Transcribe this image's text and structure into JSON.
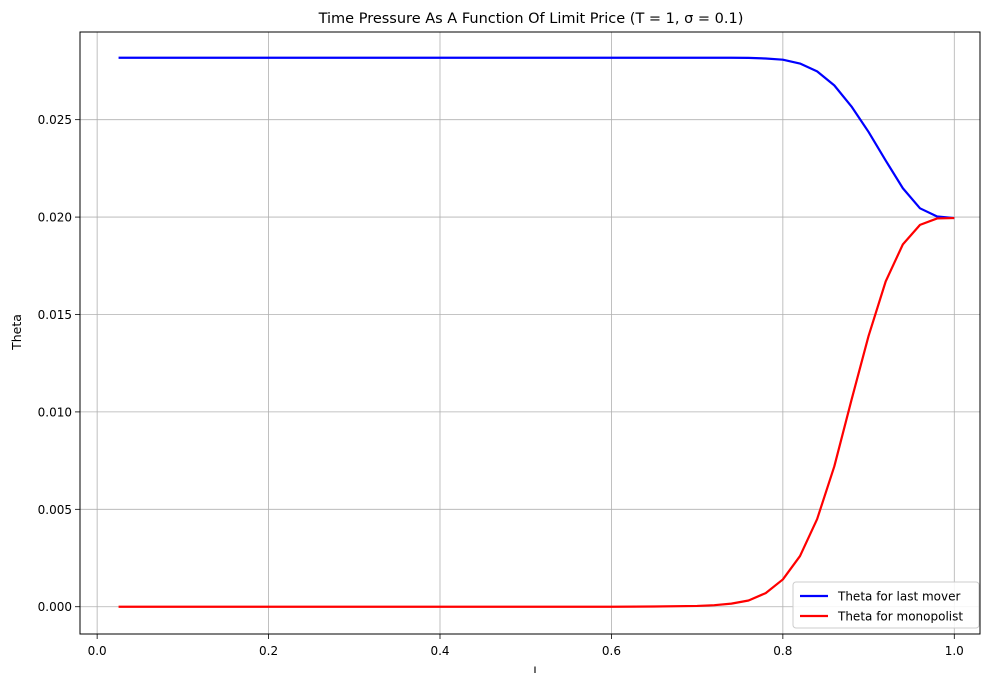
{
  "chart_data": {
    "type": "line",
    "title": "Time Pressure As A Function Of Limit Price (T = 1, σ = 0.1)",
    "xlabel": "l",
    "ylabel": "Theta",
    "xlim": [
      -0.02,
      1.03
    ],
    "ylim": [
      -0.0014,
      0.0295
    ],
    "x_ticks": [
      {
        "value": 0.0,
        "label": "0.0"
      },
      {
        "value": 0.2,
        "label": "0.2"
      },
      {
        "value": 0.4,
        "label": "0.4"
      },
      {
        "value": 0.6,
        "label": "0.6"
      },
      {
        "value": 0.8,
        "label": "0.8"
      },
      {
        "value": 1.0,
        "label": "1.0"
      }
    ],
    "y_ticks": [
      {
        "value": 0.0,
        "label": "0.000"
      },
      {
        "value": 0.005,
        "label": "0.005"
      },
      {
        "value": 0.01,
        "label": "0.010"
      },
      {
        "value": 0.015,
        "label": "0.015"
      },
      {
        "value": 0.02,
        "label": "0.020"
      },
      {
        "value": 0.025,
        "label": "0.025"
      }
    ],
    "grid": true,
    "legend_position": "bottom-right",
    "x": [
      0.025,
      0.1,
      0.2,
      0.3,
      0.4,
      0.5,
      0.6,
      0.65,
      0.7,
      0.72,
      0.74,
      0.76,
      0.78,
      0.8,
      0.82,
      0.84,
      0.86,
      0.88,
      0.9,
      0.92,
      0.94,
      0.96,
      0.98,
      1.0
    ],
    "series": [
      {
        "name": "Theta for last mover",
        "color": "#0000ff",
        "values": [
          0.02818,
          0.02818,
          0.02818,
          0.02818,
          0.02818,
          0.02818,
          0.02818,
          0.02818,
          0.02818,
          0.02818,
          0.02818,
          0.02817,
          0.02814,
          0.02808,
          0.02788,
          0.02748,
          0.02676,
          0.02568,
          0.02437,
          0.0229,
          0.02148,
          0.02045,
          0.02003,
          0.01995
        ]
      },
      {
        "name": "Theta for monopolist",
        "color": "#ff0000",
        "values": [
          0.0,
          0.0,
          0.0,
          0.0,
          0.0,
          0.0,
          0.0,
          1e-05,
          4e-05,
          8e-05,
          0.00016,
          0.00032,
          0.0007,
          0.0014,
          0.0026,
          0.0045,
          0.0072,
          0.0106,
          0.0139,
          0.0167,
          0.0186,
          0.0196,
          0.01993,
          0.01995
        ]
      }
    ]
  }
}
